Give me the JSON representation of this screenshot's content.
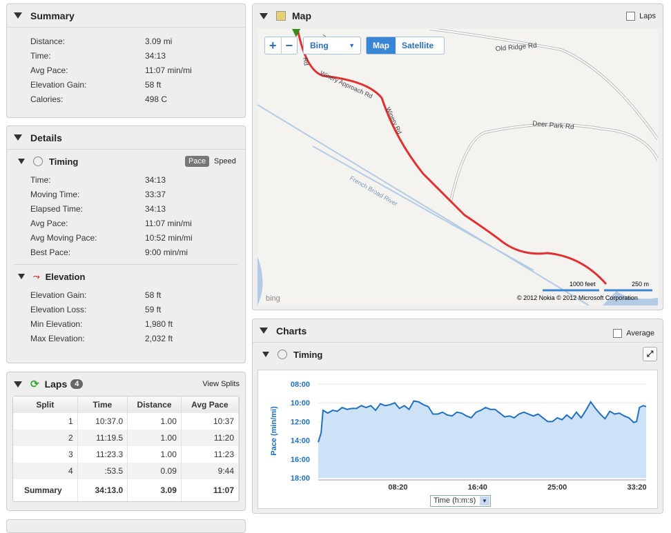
{
  "summary": {
    "title": "Summary",
    "rows": [
      {
        "k": "Distance:",
        "v": "3.09 mi"
      },
      {
        "k": "Time:",
        "v": "34:13"
      },
      {
        "k": "Avg Pace:",
        "v": "11:07 min/mi"
      },
      {
        "k": "Elevation Gain:",
        "v": "58 ft"
      },
      {
        "k": "Calories:",
        "v": "498 C"
      }
    ]
  },
  "details": {
    "title": "Details",
    "timing": {
      "title": "Timing",
      "pace": "Pace",
      "speed": "Speed",
      "rows": [
        {
          "k": "Time:",
          "v": "34:13"
        },
        {
          "k": "Moving Time:",
          "v": "33:37"
        },
        {
          "k": "Elapsed Time:",
          "v": "34:13"
        },
        {
          "k": "Avg Pace:",
          "v": "11:07 min/mi"
        },
        {
          "k": "Avg Moving Pace:",
          "v": "10:52 min/mi"
        },
        {
          "k": "Best Pace:",
          "v": "9:00 min/mi"
        }
      ]
    },
    "elevation": {
      "title": "Elevation",
      "rows": [
        {
          "k": "Elevation Gain:",
          "v": "58 ft"
        },
        {
          "k": "Elevation Loss:",
          "v": "59 ft"
        },
        {
          "k": "Min Elevation:",
          "v": "1,980 ft"
        },
        {
          "k": "Max Elevation:",
          "v": "2,032 ft"
        }
      ]
    }
  },
  "laps": {
    "title": "Laps",
    "count": "4",
    "view_splits": "View Splits",
    "headers": [
      "Split",
      "Time",
      "Distance",
      "Avg Pace"
    ],
    "rows": [
      [
        "1",
        "10:37.0",
        "1.00",
        "10:37"
      ],
      [
        "2",
        "11:19.5",
        "1.00",
        "11:20"
      ],
      [
        "3",
        "11:23.3",
        "1.00",
        "11:23"
      ],
      [
        "4",
        ":53.5",
        "0.09",
        "9:44"
      ]
    ],
    "summary": [
      "Summary",
      "34:13.0",
      "3.09",
      "11:07"
    ]
  },
  "map": {
    "title": "Map",
    "laps_label": "Laps",
    "provider": "Bing",
    "map_btn": "Map",
    "satellite_btn": "Satellite",
    "roads": [
      "Old Ridge Rd",
      "Deer Park Rd",
      "Winery Approach Rd",
      "Winery Rd",
      "French Broad River",
      "Rd",
      "W"
    ],
    "scale_ft": "1000 feet",
    "scale_m": "250 m",
    "logo": "bing",
    "copyright": "© 2012 Nokia   © 2012 Microsoft Corporation"
  },
  "charts": {
    "title": "Charts",
    "average_label": "Average",
    "timing_title": "Timing",
    "axis_select": "Time (h:m:s)"
  },
  "chart_data": {
    "type": "area",
    "ylabel": "Pace (min/mi)",
    "yticks": [
      "08:00",
      "10:00",
      "12:00",
      "14:00",
      "16:00",
      "18:00"
    ],
    "ylim": [
      8,
      18
    ],
    "xticks": [
      "08:20",
      "16:40",
      "25:00",
      "33:20"
    ],
    "xtick_values_min": [
      8.333,
      16.667,
      25,
      33.333
    ],
    "xlim_min": [
      0,
      34.3
    ],
    "color": "#1f6fc0",
    "fill": "#cde2f7",
    "points": [
      [
        0,
        14.2
      ],
      [
        0.3,
        13.2
      ],
      [
        0.5,
        10.8
      ],
      [
        1,
        11.1
      ],
      [
        1.5,
        10.8
      ],
      [
        2,
        10.9
      ],
      [
        2.5,
        10.5
      ],
      [
        3,
        10.7
      ],
      [
        3.5,
        10.6
      ],
      [
        4,
        10.6
      ],
      [
        4.5,
        10.3
      ],
      [
        5,
        10.5
      ],
      [
        5.5,
        10.3
      ],
      [
        6,
        10.8
      ],
      [
        6.5,
        10.1
      ],
      [
        7,
        10.3
      ],
      [
        7.5,
        10.2
      ],
      [
        8,
        10.0
      ],
      [
        8.5,
        10.6
      ],
      [
        9,
        10.3
      ],
      [
        9.5,
        10.7
      ],
      [
        10,
        9.8
      ],
      [
        10.5,
        9.9
      ],
      [
        11,
        10.2
      ],
      [
        11.5,
        10.4
      ],
      [
        12,
        11.2
      ],
      [
        12.5,
        11.2
      ],
      [
        13,
        11.0
      ],
      [
        13.5,
        11.3
      ],
      [
        14,
        11.4
      ],
      [
        14.5,
        11.0
      ],
      [
        15,
        11.1
      ],
      [
        15.5,
        11.4
      ],
      [
        16,
        11.6
      ],
      [
        16.5,
        11.0
      ],
      [
        17,
        10.8
      ],
      [
        17.5,
        10.5
      ],
      [
        18,
        10.7
      ],
      [
        18.5,
        10.7
      ],
      [
        19,
        11.1
      ],
      [
        19.5,
        11.5
      ],
      [
        20,
        11.4
      ],
      [
        20.5,
        11.6
      ],
      [
        21,
        11.2
      ],
      [
        21.5,
        11.0
      ],
      [
        22,
        11.2
      ],
      [
        22.5,
        11.4
      ],
      [
        23,
        11.2
      ],
      [
        23.5,
        11.6
      ],
      [
        24,
        12.0
      ],
      [
        24.5,
        12.0
      ],
      [
        25,
        11.6
      ],
      [
        25.5,
        11.8
      ],
      [
        26,
        11.3
      ],
      [
        26.5,
        11.7
      ],
      [
        27,
        11.0
      ],
      [
        27.5,
        11.6
      ],
      [
        28,
        10.8
      ],
      [
        28.5,
        9.9
      ],
      [
        29,
        10.6
      ],
      [
        29.5,
        11.2
      ],
      [
        30,
        11.7
      ],
      [
        30.5,
        10.9
      ],
      [
        31,
        11.2
      ],
      [
        31.5,
        11.1
      ],
      [
        32,
        11.4
      ],
      [
        32.5,
        11.6
      ],
      [
        33,
        12.1
      ],
      [
        33.3,
        12.0
      ],
      [
        33.6,
        10.5
      ],
      [
        34,
        10.3
      ],
      [
        34.3,
        10.4
      ]
    ]
  }
}
